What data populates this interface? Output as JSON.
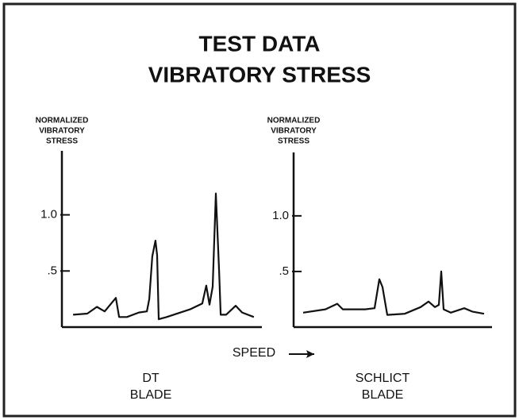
{
  "title": [
    "TEST DATA",
    "VIBRATORY STRESS"
  ],
  "x_label": "SPEED",
  "chart_data": [
    {
      "type": "line",
      "title": [
        "DT",
        "BLADE"
      ],
      "y_label": [
        "NORMALIZED",
        "VIBRATORY",
        "STRESS"
      ],
      "color": "#111111",
      "xlim": [
        0,
        100
      ],
      "ylim": [
        0,
        1.57
      ],
      "yticks": [
        {
          "value": 0.5,
          "label": ".5"
        },
        {
          "value": 1.0,
          "label": "1.0"
        }
      ],
      "x": [
        5.6,
        12.7,
        17.5,
        21.4,
        27,
        28.6,
        32.5,
        38.5,
        42.5,
        43.7,
        45.2,
        46.8,
        47.6,
        48.4,
        52.4,
        64.3,
        70.2,
        72.2,
        73.8,
        75.4,
        77,
        78.6,
        79.4,
        82.1,
        86.9,
        90.1,
        96
      ],
      "values": [
        0.11,
        0.12,
        0.18,
        0.14,
        0.26,
        0.09,
        0.09,
        0.13,
        0.14,
        0.25,
        0.63,
        0.77,
        0.64,
        0.07,
        0.09,
        0.16,
        0.21,
        0.37,
        0.2,
        0.36,
        1.19,
        0.5,
        0.11,
        0.11,
        0.19,
        0.13,
        0.09
      ]
    },
    {
      "type": "line",
      "title": [
        "SCHLICT",
        "BLADE"
      ],
      "y_label": [
        "NORMALIZED",
        "VIBRATORY",
        "STRESS"
      ],
      "color": "#111111",
      "xlim": [
        0,
        100
      ],
      "ylim": [
        0,
        1.57
      ],
      "yticks": [
        {
          "value": 0.5,
          "label": ".5"
        },
        {
          "value": 1.0,
          "label": "1.0"
        }
      ],
      "x": [
        4.8,
        16,
        22,
        24.8,
        36,
        40.8,
        43.2,
        44.8,
        47.2,
        56,
        64,
        68,
        71.2,
        73.2,
        74.4,
        75.6,
        79.2,
        86,
        90,
        96
      ],
      "values": [
        0.13,
        0.16,
        0.21,
        0.16,
        0.16,
        0.17,
        0.43,
        0.36,
        0.11,
        0.12,
        0.18,
        0.23,
        0.18,
        0.2,
        0.5,
        0.16,
        0.13,
        0.17,
        0.14,
        0.12
      ]
    }
  ]
}
